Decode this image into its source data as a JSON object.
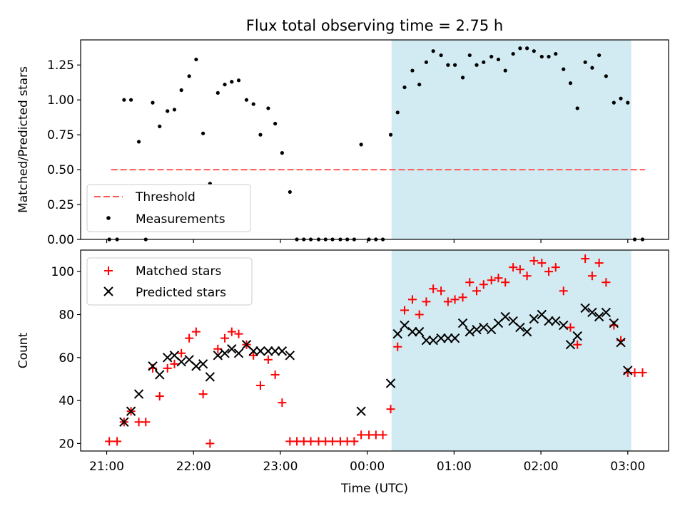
{
  "figure_title": "Flux total observing time = 2.75 h",
  "x_ticks": [
    "21:00",
    "22:00",
    "23:00",
    "00:00",
    "01:00",
    "02:00",
    "03:00"
  ],
  "xlabel": "Time (UTC)",
  "colors": {
    "shade": "#add8e6",
    "threshold": "#ff5a5a",
    "matched": "#ff0000",
    "predicted": "#000000",
    "measure": "#000000"
  },
  "chart_data": [
    {
      "type": "scatter",
      "ylabel": "Matched/Predicted stars",
      "ylim": [
        0,
        1.43
      ],
      "y_ticks": [
        "0.00",
        "0.25",
        "0.50",
        "0.75",
        "1.00",
        "1.25"
      ],
      "xlim_hours": [
        -0.3,
        6.47
      ],
      "shaded_interval_hours": [
        3.28,
        6.04
      ],
      "threshold": {
        "name": "Threshold",
        "value": 0.5,
        "x_range": [
          0.05,
          6.2
        ]
      },
      "legend": [
        "Threshold",
        "Measurements"
      ],
      "legend_location": "lower-left",
      "series": [
        {
          "name": "Measurements",
          "x": [
            0.03,
            0.12,
            0.2,
            0.28,
            0.37,
            0.45,
            0.53,
            0.61,
            0.7,
            0.78,
            0.86,
            0.95,
            1.03,
            1.11,
            1.19,
            1.28,
            1.36,
            1.44,
            1.52,
            1.61,
            1.69,
            1.77,
            1.86,
            1.94,
            2.02,
            2.11,
            2.19,
            2.27,
            2.35,
            2.44,
            2.52,
            2.6,
            2.69,
            2.77,
            2.85,
            2.93,
            3.02,
            3.1,
            3.18,
            3.27,
            3.35,
            3.43,
            3.52,
            3.6,
            3.68,
            3.76,
            3.85,
            3.93,
            4.01,
            4.1,
            4.18,
            4.26,
            4.34,
            4.43,
            4.51,
            4.59,
            4.68,
            4.76,
            4.84,
            4.92,
            5.01,
            5.09,
            5.17,
            5.26,
            5.34,
            5.42,
            5.51,
            5.59,
            5.67,
            5.75,
            5.84,
            5.92,
            6.0,
            6.08,
            6.17
          ],
          "y": [
            0,
            0,
            1.0,
            1.0,
            0.7,
            0,
            0.98,
            0.81,
            0.92,
            0.93,
            1.07,
            1.17,
            1.29,
            0.76,
            0.4,
            1.05,
            1.11,
            1.13,
            1.14,
            1.0,
            0.97,
            0.75,
            0.94,
            0.83,
            0.62,
            0.34,
            0,
            0,
            0,
            0,
            0,
            0,
            0,
            0,
            0,
            0.68,
            0,
            0,
            0,
            0.75,
            0.91,
            1.09,
            1.21,
            1.11,
            1.27,
            1.35,
            1.32,
            1.25,
            1.25,
            1.16,
            1.32,
            1.25,
            1.27,
            1.31,
            1.29,
            1.21,
            1.33,
            1.37,
            1.37,
            1.35,
            1.31,
            1.31,
            1.33,
            1.22,
            1.12,
            0.94,
            1.27,
            1.23,
            1.32,
            1.17,
            0.98,
            1.01,
            0.98,
            0,
            0
          ]
        }
      ]
    },
    {
      "type": "scatter",
      "ylabel": "Count",
      "ylim": [
        16.5,
        110
      ],
      "y_ticks": [
        "20",
        "40",
        "60",
        "80",
        "100"
      ],
      "xlim_hours": [
        -0.3,
        6.47
      ],
      "shaded_interval_hours": [
        3.28,
        6.04
      ],
      "legend": [
        "Matched stars",
        "Predicted stars"
      ],
      "legend_location": "upper-left",
      "series": [
        {
          "name": "Matched stars",
          "marker": "+",
          "x": [
            0.03,
            0.12,
            0.2,
            0.28,
            0.37,
            0.45,
            0.53,
            0.61,
            0.7,
            0.78,
            0.86,
            0.95,
            1.03,
            1.11,
            1.19,
            1.28,
            1.36,
            1.44,
            1.52,
            1.61,
            1.69,
            1.77,
            1.86,
            1.94,
            2.02,
            2.11,
            2.19,
            2.27,
            2.35,
            2.44,
            2.52,
            2.6,
            2.69,
            2.77,
            2.85,
            2.93,
            3.02,
            3.1,
            3.18,
            3.27,
            3.35,
            3.43,
            3.52,
            3.6,
            3.68,
            3.76,
            3.85,
            3.93,
            4.01,
            4.1,
            4.18,
            4.26,
            4.34,
            4.43,
            4.51,
            4.59,
            4.68,
            4.76,
            4.84,
            4.92,
            5.01,
            5.09,
            5.17,
            5.26,
            5.34,
            5.42,
            5.51,
            5.59,
            5.67,
            5.75,
            5.84,
            5.92,
            6.0,
            6.08,
            6.17
          ],
          "y": [
            21,
            21,
            30,
            35,
            30,
            30,
            55,
            42,
            55,
            57,
            62,
            69,
            72,
            43,
            20,
            64,
            69,
            72,
            71,
            66,
            61,
            47,
            59,
            52,
            39,
            21,
            21,
            21,
            21,
            21,
            21,
            21,
            21,
            21,
            21,
            24,
            24,
            24,
            24,
            36,
            65,
            82,
            87,
            80,
            86,
            92,
            91,
            86,
            87,
            88,
            95,
            91,
            94,
            96,
            97,
            95,
            102,
            101,
            98,
            105,
            104,
            100,
            102,
            91,
            74,
            66,
            106,
            98,
            104,
            95,
            75,
            68,
            53,
            53,
            53
          ]
        },
        {
          "name": "Predicted stars",
          "marker": "x",
          "x": [
            0.2,
            0.28,
            0.37,
            0.53,
            0.61,
            0.7,
            0.78,
            0.86,
            0.95,
            1.03,
            1.11,
            1.19,
            1.28,
            1.36,
            1.44,
            1.52,
            1.61,
            1.69,
            1.77,
            1.86,
            1.94,
            2.02,
            2.11,
            2.93,
            3.27,
            3.35,
            3.43,
            3.52,
            3.6,
            3.68,
            3.76,
            3.85,
            3.93,
            4.01,
            4.1,
            4.18,
            4.26,
            4.34,
            4.43,
            4.51,
            4.59,
            4.68,
            4.76,
            4.84,
            4.92,
            5.01,
            5.09,
            5.17,
            5.26,
            5.34,
            5.42,
            5.51,
            5.59,
            5.67,
            5.75,
            5.84,
            5.92,
            6.0
          ],
          "y": [
            30,
            35,
            43,
            56,
            52,
            60,
            61,
            58,
            59,
            56,
            57,
            51,
            61,
            62,
            64,
            62,
            66,
            63,
            63,
            63,
            63,
            63,
            61,
            35,
            48,
            71,
            75,
            72,
            72,
            68,
            68,
            69,
            69,
            69,
            76,
            72,
            73,
            74,
            73,
            76,
            79,
            77,
            74,
            72,
            78,
            80,
            77,
            77,
            75,
            66,
            70,
            83,
            81,
            79,
            81,
            76,
            67,
            54
          ]
        }
      ]
    }
  ]
}
